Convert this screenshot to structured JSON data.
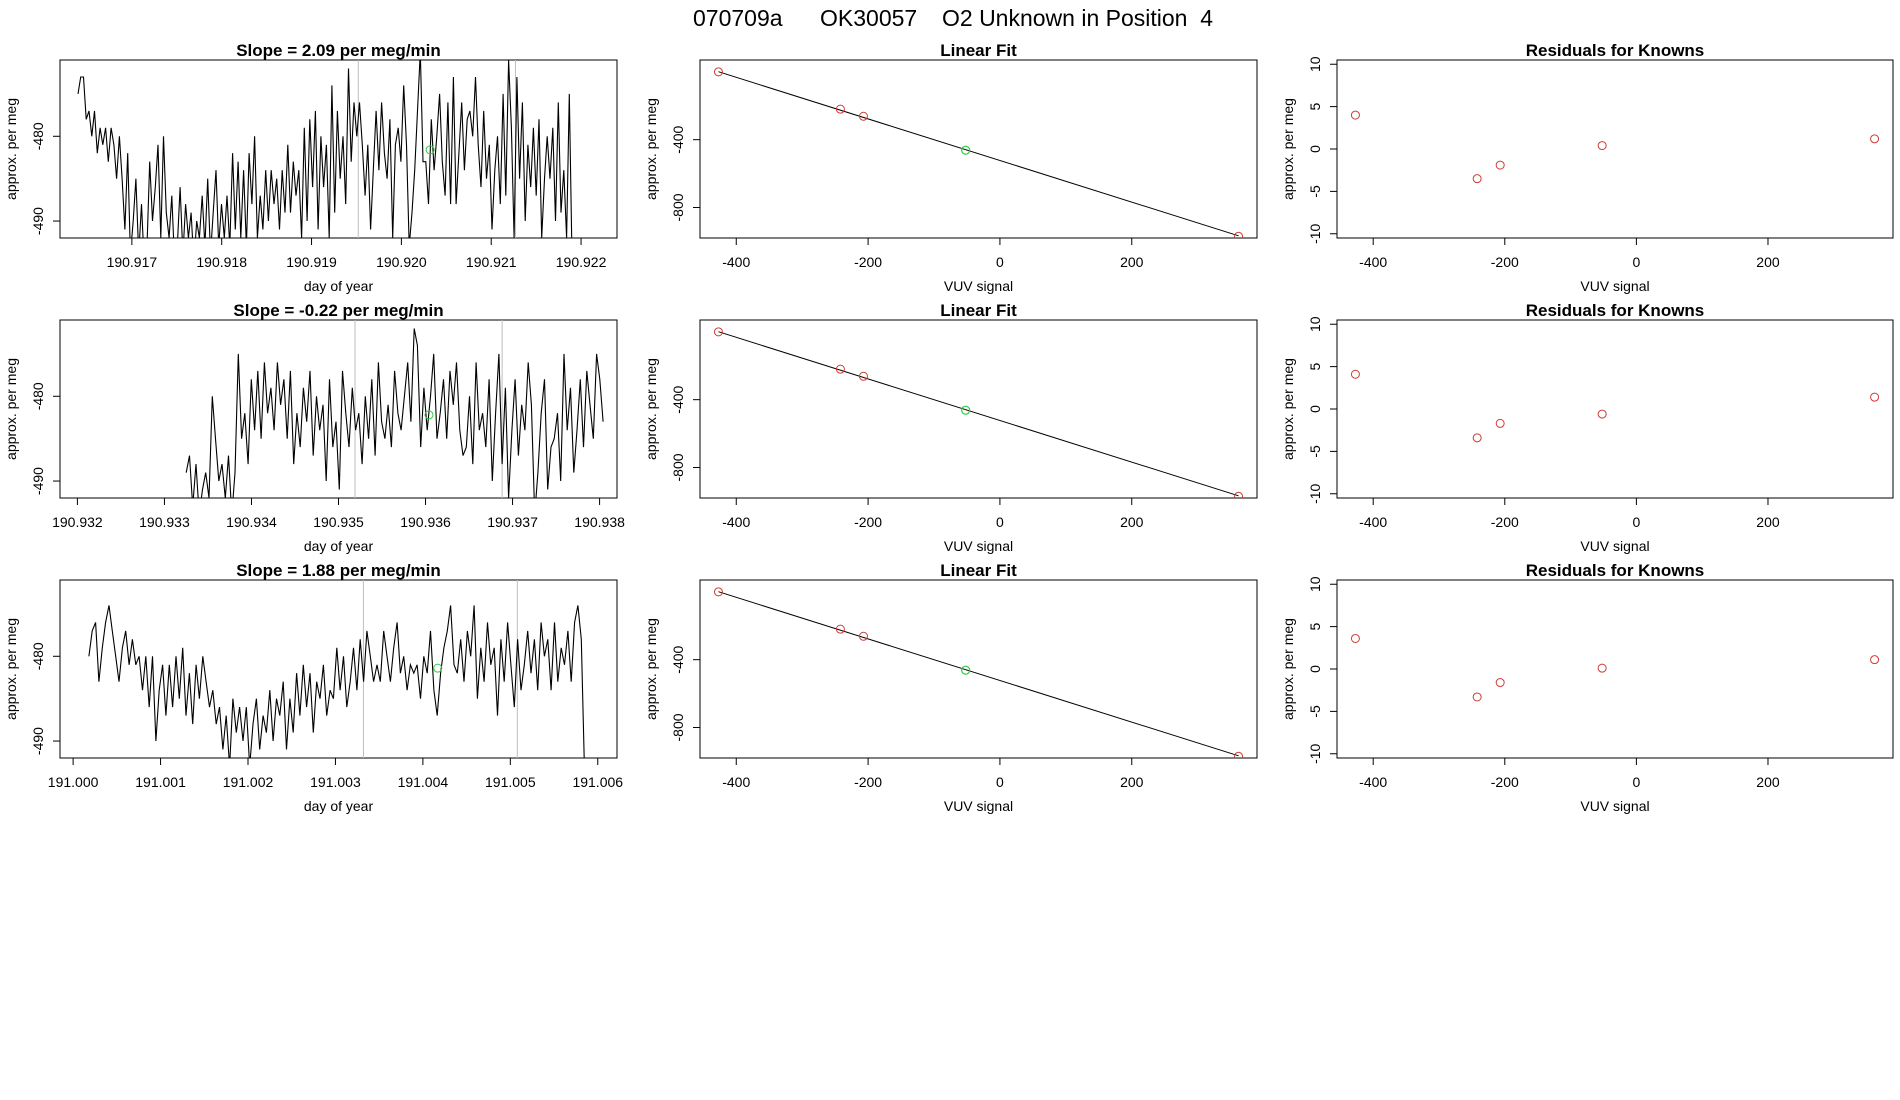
{
  "header": {
    "run_id": "070709a",
    "tank_id": "OK30057",
    "description": "O2 Unknown in Position  4"
  },
  "colors": {
    "line": "#000000",
    "known_point": "#cd3b32",
    "unknown_point": "#2ecc40",
    "marker_line": "#bdbdbd"
  },
  "chart_data": [
    {
      "type": "line",
      "title": "Slope =  2.09  per meg/min",
      "xlabel": "day of year",
      "ylabel": "approx. per meg",
      "xlim": [
        190.9162,
        190.9224
      ],
      "ylim": [
        -492,
        -471
      ],
      "xticks": [
        "190.917",
        "190.918",
        "190.919",
        "190.920",
        "190.921",
        "190.922"
      ],
      "yticks": [
        "-490",
        "-480"
      ],
      "x_start": 190.9164,
      "x_end": 190.9219,
      "series_y": [
        -475,
        -473,
        -473,
        -478,
        -477,
        -480,
        -477,
        -482,
        -479,
        -481,
        -479,
        -483,
        -479,
        -481,
        -485,
        -480,
        -485,
        -491,
        -482,
        -494,
        -490,
        -485,
        -494,
        -488,
        -495,
        -493,
        -483,
        -490,
        -486,
        -481,
        -492,
        -480,
        -489,
        -492,
        -487,
        -495,
        -493,
        -486,
        -494,
        -488,
        -492,
        -489,
        -495,
        -490,
        -492,
        -487,
        -493,
        -485,
        -494,
        -489,
        -484,
        -493,
        -488,
        -492,
        -487,
        -493,
        -482,
        -491,
        -483,
        -492,
        -484,
        -493,
        -482,
        -488,
        -480,
        -492,
        -487,
        -491,
        -484,
        -490,
        -484,
        -488,
        -485,
        -491,
        -484,
        -489,
        -481,
        -489,
        -483,
        -487,
        -484,
        -492,
        -479,
        -490,
        -478,
        -486,
        -477,
        -491,
        -480,
        -486,
        -481,
        -492,
        -474,
        -489,
        -477,
        -485,
        -480,
        -488,
        -472,
        -483,
        -476,
        -480,
        -476,
        -481,
        -487,
        -481,
        -491,
        -484,
        -477,
        -484,
        -476,
        -482,
        -485,
        -478,
        -492,
        -481,
        -479,
        -483,
        -474,
        -481,
        -493,
        -489,
        -484,
        -477,
        -470,
        -483,
        -483,
        -488,
        -478,
        -484,
        -480,
        -475,
        -483,
        -487,
        -476,
        -488,
        -473,
        -488,
        -482,
        -476,
        -484,
        -478,
        -477,
        -480,
        -473,
        -481,
        -486,
        -477,
        -485,
        -481,
        -491,
        -484,
        -480,
        -488,
        -475,
        -487,
        -471,
        -479,
        -492,
        -473,
        -485,
        -476,
        -490,
        -481,
        -486,
        -479,
        -487,
        -478,
        -492,
        -485,
        -480,
        -485,
        -479,
        -490,
        -476,
        -489,
        -484,
        -492,
        -475,
        -495
      ],
      "vlines": [
        190.91952,
        190.92127
      ],
      "unknown_point": {
        "x": 190.92032,
        "y": -481.6
      }
    },
    {
      "type": "scatter",
      "title": "Linear Fit",
      "xlabel": "VUV signal",
      "ylabel": "approx. per meg",
      "xlim": [
        -455,
        390
      ],
      "ylim": [
        -980,
        70
      ],
      "xticks": [
        "-400",
        "-200",
        "0",
        "200"
      ],
      "yticks": [
        "-800",
        "-400"
      ],
      "knowns": [
        {
          "x": -427,
          "y": 0
        },
        {
          "x": -242,
          "y": -220
        },
        {
          "x": -207,
          "y": -262
        },
        {
          "x": 362,
          "y": -970
        }
      ],
      "unknowns": [
        {
          "x": -52,
          "y": -462
        }
      ],
      "fit_line": {
        "x": [
          -427,
          362
        ],
        "y": [
          1,
          -967
        ]
      }
    },
    {
      "type": "scatter",
      "title": "Residuals for Knowns",
      "xlabel": "VUV signal",
      "ylabel": "approx. per meg",
      "xlim": [
        -455,
        390
      ],
      "ylim": [
        -10.5,
        10.5
      ],
      "xticks": [
        "-400",
        "-200",
        "0",
        "200"
      ],
      "yticks": [
        "-10",
        "-5",
        "0",
        "5",
        "10"
      ],
      "points": [
        {
          "x": -427,
          "y": 4.0
        },
        {
          "x": -242,
          "y": -3.5
        },
        {
          "x": -207,
          "y": -1.9
        },
        {
          "x": -52,
          "y": 0.4
        },
        {
          "x": 362,
          "y": 1.2
        }
      ]
    },
    {
      "type": "line",
      "title": "Slope =  -0.22  per meg/min",
      "xlabel": "day of year",
      "ylabel": "approx. per meg",
      "xlim": [
        190.9318,
        190.9382
      ],
      "ylim": [
        -492,
        -471
      ],
      "xticks": [
        "190.932",
        "190.933",
        "190.934",
        "190.935",
        "190.936",
        "190.937",
        "190.938"
      ],
      "yticks": [
        "-490",
        "-480"
      ],
      "x_start": 190.93325,
      "x_end": 190.93804,
      "series_y": [
        -489,
        -487,
        -493,
        -488,
        -494,
        -491,
        -489,
        -492,
        -480,
        -485,
        -490,
        -488,
        -492,
        -487,
        -494,
        -489,
        -475,
        -485,
        -482,
        -488,
        -478,
        -484,
        -477,
        -485,
        -476,
        -482,
        -479,
        -484,
        -476,
        -481,
        -478,
        -485,
        -477,
        -488,
        -482,
        -486,
        -479,
        -483,
        -477,
        -487,
        -480,
        -484,
        -481,
        -490,
        -478,
        -486,
        -483,
        -491,
        -477,
        -482,
        -486,
        -479,
        -484,
        -482,
        -488,
        -480,
        -485,
        -478,
        -487,
        -476,
        -483,
        -485,
        -481,
        -486,
        -477,
        -482,
        -484,
        -480,
        -476,
        -483,
        -472,
        -474,
        -486,
        -479,
        -484,
        -480,
        -475,
        -485,
        -482,
        -478,
        -485,
        -477,
        -481,
        -476,
        -484,
        -487,
        -486,
        -480,
        -488,
        -476,
        -484,
        -482,
        -486,
        -478,
        -490,
        -482,
        -475,
        -488,
        -479,
        -492,
        -484,
        -478,
        -487,
        -481,
        -484,
        -476,
        -481,
        -494,
        -489,
        -482,
        -478,
        -491,
        -486,
        -485,
        -482,
        -490,
        -475,
        -484,
        -479,
        -489,
        -484,
        -478,
        -486,
        -477,
        -481,
        -485,
        -475,
        -478,
        -483
      ],
      "vlines": [
        190.93519,
        190.93688
      ],
      "unknown_point": {
        "x": 190.93604,
        "y": -482.2
      }
    },
    {
      "type": "scatter",
      "title": "Linear Fit",
      "xlabel": "VUV signal",
      "ylabel": "approx. per meg",
      "xlim": [
        -455,
        390
      ],
      "ylim": [
        -980,
        70
      ],
      "xticks": [
        "-400",
        "-200",
        "0",
        "200"
      ],
      "yticks": [
        "-800",
        "-400"
      ],
      "knowns": [
        {
          "x": -427,
          "y": 0
        },
        {
          "x": -242,
          "y": -220
        },
        {
          "x": -207,
          "y": -262
        },
        {
          "x": 362,
          "y": -970
        }
      ],
      "unknowns": [
        {
          "x": -52,
          "y": -462
        }
      ],
      "fit_line": {
        "x": [
          -427,
          362
        ],
        "y": [
          1,
          -967
        ]
      }
    },
    {
      "type": "scatter",
      "title": "Residuals for Knowns",
      "xlabel": "VUV signal",
      "ylabel": "approx. per meg",
      "xlim": [
        -455,
        390
      ],
      "ylim": [
        -10.5,
        10.5
      ],
      "xticks": [
        "-400",
        "-200",
        "0",
        "200"
      ],
      "yticks": [
        "-10",
        "-5",
        "0",
        "5",
        "10"
      ],
      "points": [
        {
          "x": -427,
          "y": 4.1
        },
        {
          "x": -242,
          "y": -3.4
        },
        {
          "x": -207,
          "y": -1.7
        },
        {
          "x": -52,
          "y": -0.6
        },
        {
          "x": 362,
          "y": 1.4
        }
      ]
    },
    {
      "type": "line",
      "title": "Slope =  1.88  per meg/min",
      "xlabel": "day of year",
      "ylabel": "approx. per meg",
      "xlim": [
        190.99985,
        191.00622
      ],
      "ylim": [
        -492,
        -471
      ],
      "xticks": [
        "191.000",
        "191.001",
        "191.002",
        "191.003",
        "191.004",
        "191.005",
        "191.006"
      ],
      "yticks": [
        "-490",
        "-480"
      ],
      "x_start": 191.00018,
      "x_end": 191.00585,
      "series_y": [
        -480,
        -477,
        -476,
        -483,
        -479,
        -476,
        -474,
        -477,
        -480,
        -483,
        -479,
        -477,
        -481,
        -478,
        -481,
        -480,
        -484,
        -480,
        -486,
        -480,
        -490,
        -484,
        -481,
        -487,
        -481,
        -486,
        -480,
        -485,
        -479,
        -487,
        -482,
        -488,
        -481,
        -485,
        -480,
        -483,
        -486,
        -484,
        -488,
        -486,
        -491,
        -487,
        -493,
        -485,
        -489,
        -486,
        -490,
        -486,
        -493,
        -488,
        -485,
        -491,
        -487,
        -489,
        -484,
        -490,
        -485,
        -487,
        -483,
        -491,
        -485,
        -489,
        -482,
        -487,
        -481,
        -486,
        -482,
        -489,
        -483,
        -485,
        -481,
        -487,
        -484,
        -485,
        -479,
        -484,
        -480,
        -486,
        -483,
        -479,
        -484,
        -478,
        -483,
        -477,
        -480,
        -483,
        -481,
        -483,
        -477,
        -480,
        -483,
        -479,
        -476,
        -482,
        -480,
        -484,
        -481,
        -482,
        -481,
        -485,
        -480,
        -482,
        -477,
        -484,
        -487,
        -482,
        -479,
        -477,
        -474,
        -481,
        -482,
        -478,
        -483,
        -477,
        -480,
        -474,
        -485,
        -479,
        -483,
        -476,
        -481,
        -479,
        -487,
        -478,
        -483,
        -476,
        -481,
        -486,
        -478,
        -484,
        -481,
        -477,
        -482,
        -478,
        -484,
        -476,
        -480,
        -478,
        -484,
        -476,
        -483,
        -479,
        -481,
        -477,
        -483,
        -476,
        -474,
        -478,
        -494
      ],
      "vlines": [
        191.00332,
        191.00508
      ],
      "unknown_point": {
        "x": 191.00417,
        "y": -481.4
      }
    },
    {
      "type": "scatter",
      "title": "Linear Fit",
      "xlabel": "VUV signal",
      "ylabel": "approx. per meg",
      "xlim": [
        -455,
        390
      ],
      "ylim": [
        -980,
        70
      ],
      "xticks": [
        "-400",
        "-200",
        "0",
        "200"
      ],
      "yticks": [
        "-800",
        "-400"
      ],
      "knowns": [
        {
          "x": -427,
          "y": 0
        },
        {
          "x": -242,
          "y": -220
        },
        {
          "x": -207,
          "y": -262
        },
        {
          "x": 362,
          "y": -970
        }
      ],
      "unknowns": [
        {
          "x": -52,
          "y": -462
        }
      ],
      "fit_line": {
        "x": [
          -427,
          362
        ],
        "y": [
          1,
          -967
        ]
      }
    },
    {
      "type": "scatter",
      "title": "Residuals for Knowns",
      "xlabel": "VUV signal",
      "ylabel": "approx. per meg",
      "xlim": [
        -455,
        390
      ],
      "ylim": [
        -10.5,
        10.5
      ],
      "xticks": [
        "-400",
        "-200",
        "0",
        "200"
      ],
      "yticks": [
        "-10",
        "-5",
        "0",
        "5",
        "10"
      ],
      "points": [
        {
          "x": -427,
          "y": 3.6
        },
        {
          "x": -242,
          "y": -3.3
        },
        {
          "x": -207,
          "y": -1.6
        },
        {
          "x": -52,
          "y": 0.1
        },
        {
          "x": 362,
          "y": 1.1
        }
      ]
    }
  ]
}
